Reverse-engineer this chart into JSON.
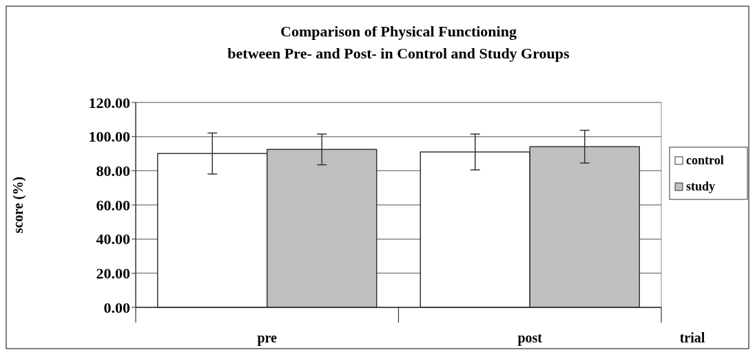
{
  "chart_data": {
    "type": "bar",
    "title": "Comparison of Physical Functioning\nbetween Pre- and Post- in Control and Study Groups",
    "xlabel": "trial",
    "ylabel": "score (%)",
    "categories": [
      "pre",
      "post"
    ],
    "series": [
      {
        "name": "control",
        "color": "#ffffff",
        "values": [
          90.1,
          91.0
        ],
        "errors": [
          12,
          10.5
        ]
      },
      {
        "name": "study",
        "color": "#c0c0c0",
        "values": [
          92.5,
          94.1
        ],
        "errors": [
          9,
          9.6
        ]
      }
    ],
    "ylim": [
      0,
      120
    ],
    "yticks": [
      {
        "value": 0,
        "label": "0.00"
      },
      {
        "value": 20,
        "label": "20.00"
      },
      {
        "value": 40,
        "label": "40.00"
      },
      {
        "value": 60,
        "label": "60.00"
      },
      {
        "value": 80,
        "label": "80.00"
      },
      {
        "value": 100,
        "label": "100.00"
      },
      {
        "value": 120,
        "label": "120.00"
      }
    ],
    "grid": "y",
    "legend": "right"
  }
}
